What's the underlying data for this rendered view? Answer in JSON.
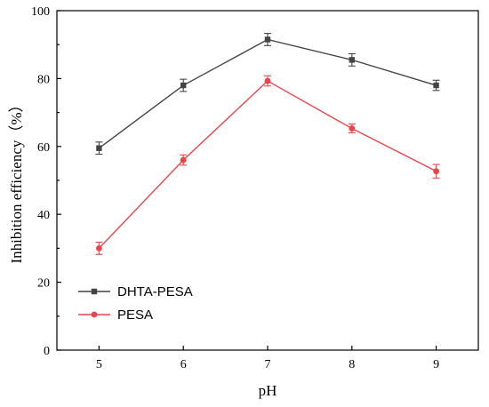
{
  "chart_data": {
    "type": "line",
    "xlabel": "pH",
    "ylabel": "Inhibition efficiency（%）",
    "x": [
      5,
      6,
      7,
      8,
      9
    ],
    "xlim": [
      4.5,
      9.5
    ],
    "ylim": [
      0,
      100
    ],
    "xticks": [
      "5",
      "6",
      "7",
      "8",
      "9"
    ],
    "yticks": [
      "0",
      "20",
      "40",
      "60",
      "80",
      "100"
    ],
    "legend_position": "bottom-left",
    "series": [
      {
        "name": "DHTA-PESA",
        "values": [
          59.5,
          78,
          91.5,
          85.5,
          78
        ],
        "errors": [
          1.8,
          1.8,
          1.8,
          1.8,
          1.5
        ],
        "color": "#444444",
        "marker": "square"
      },
      {
        "name": "PESA",
        "values": [
          30,
          56,
          79.3,
          65.3,
          52.7
        ],
        "errors": [
          1.8,
          1.5,
          1.5,
          1.3,
          2.0
        ],
        "color": "#e8454a",
        "marker": "circle"
      }
    ]
  }
}
